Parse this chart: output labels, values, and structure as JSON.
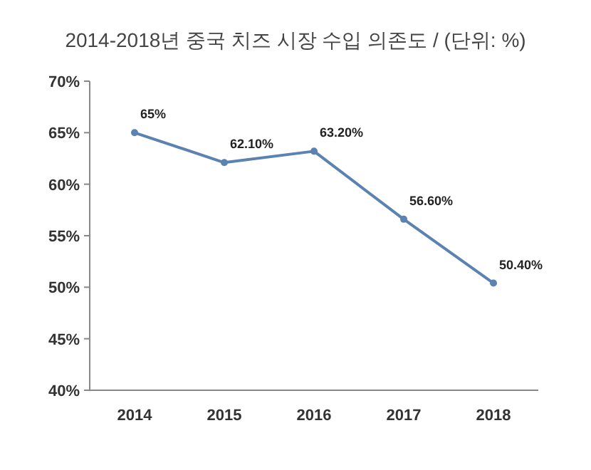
{
  "chart_data": {
    "type": "line",
    "title": "2014-2018년 중국 치즈 시장 수입 의존도 / (단위: %)",
    "categories": [
      "2014",
      "2015",
      "2016",
      "2017",
      "2018"
    ],
    "series": [
      {
        "color": "#5b82b0",
        "values": [
          65,
          62.1,
          63.2,
          56.6,
          50.4
        ],
        "value_labels": [
          "65%",
          "62.10%",
          "63.20%",
          "56.60%",
          "50.40%"
        ]
      }
    ],
    "ylim": [
      40,
      70
    ],
    "yticks": [
      {
        "value": 40,
        "label": "40%"
      },
      {
        "value": 45,
        "label": "45%"
      },
      {
        "value": 50,
        "label": "50%"
      },
      {
        "value": 55,
        "label": "55%"
      },
      {
        "value": 60,
        "label": "60%"
      },
      {
        "value": 65,
        "label": "65%"
      },
      {
        "value": 70,
        "label": "70%"
      }
    ],
    "marker": "circle",
    "line_style": "solid"
  }
}
